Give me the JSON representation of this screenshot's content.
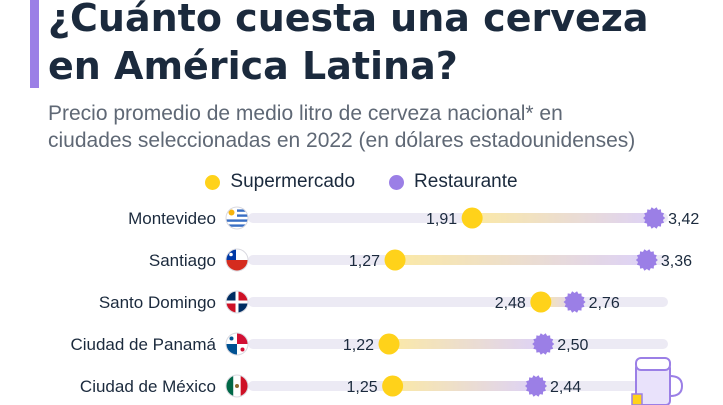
{
  "header": {
    "title_line1": "¿Cuánto cuesta una cerveza",
    "title_line2": "en América Latina?",
    "subtitle_line1": "Precio promedio de medio litro de cerveza nacional* en",
    "subtitle_line2": "ciudades seleccionadas en 2022 (en dólares estadounidenses)"
  },
  "colors": {
    "accent": "#9b7fe6",
    "supermercado": "#ffd21a",
    "restaurante": "#9b7fe6",
    "track": "#eceaf4",
    "text": "#1b2a3d"
  },
  "chart_data": {
    "type": "dumbbell",
    "title": "¿Cuánto cuesta una cerveza en América Latina?",
    "subtitle": "Precio promedio de medio litro de cerveza nacional* en ciudades seleccionadas en 2022 (en dólares estadounidenses)",
    "legend_position": "top-center",
    "grid": false,
    "xlim": [
      0,
      3.5
    ],
    "categories": [
      "Montevideo",
      "Santiago",
      "Santo Domingo",
      "Ciudad de Panamá",
      "Ciudad de México"
    ],
    "category_icons": [
      "uruguay-flag-icon",
      "chile-flag-icon",
      "dominican-republic-flag-icon",
      "panama-flag-icon",
      "mexico-flag-icon"
    ],
    "value_labels": {
      "Supermercado": [
        "1,91",
        "1,27",
        "2,48",
        "1,22",
        "1,25"
      ],
      "Restaurante": [
        "3,42",
        "3,36",
        "2,76",
        "2,50",
        "2,44"
      ]
    },
    "series": [
      {
        "name": "Supermercado",
        "values": [
          1.91,
          1.27,
          2.48,
          1.22,
          1.25
        ]
      },
      {
        "name": "Restaurante",
        "values": [
          3.42,
          3.36,
          2.76,
          2.5,
          2.44
        ]
      }
    ]
  }
}
